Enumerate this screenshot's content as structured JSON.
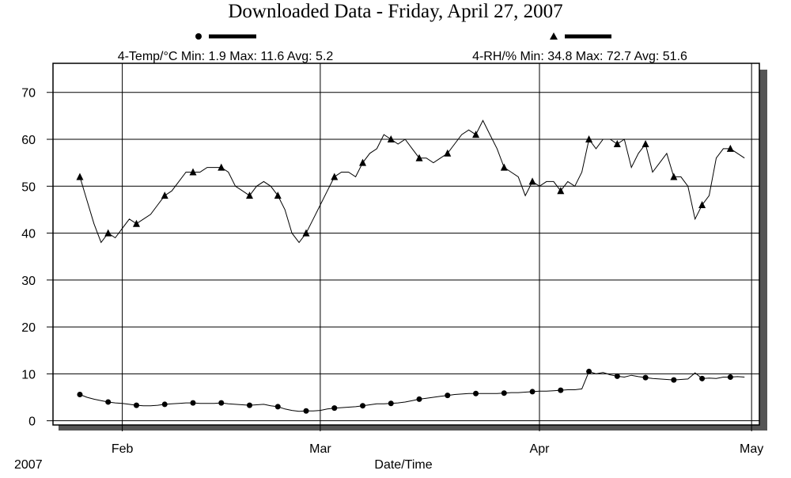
{
  "chart_data": {
    "type": "line",
    "title": "Downloaded Data - Friday, April 27, 2007",
    "xlabel": "Date/Time",
    "year_label": "2007",
    "x": [
      26,
      27,
      28,
      29,
      30,
      31,
      32,
      33,
      34,
      35,
      36,
      37,
      38,
      39,
      40,
      41,
      42,
      43,
      44,
      45,
      46,
      47,
      48,
      49,
      50,
      51,
      52,
      53,
      54,
      55,
      56,
      57,
      58,
      59,
      60,
      61,
      62,
      63,
      64,
      65,
      66,
      67,
      68,
      69,
      70,
      71,
      72,
      73,
      74,
      75,
      76,
      77,
      78,
      79,
      80,
      81,
      82,
      83,
      84,
      85,
      86,
      87,
      88,
      89,
      90,
      91,
      92,
      93,
      94,
      95,
      96,
      97,
      98,
      99,
      100,
      101,
      102,
      103,
      104,
      105,
      106,
      107,
      108,
      109,
      110,
      111,
      112,
      113,
      114,
      115,
      116,
      117,
      118,
      119,
      120
    ],
    "series": [
      {
        "name": "4-Temp/°C Min: 1.9 Max: 11.6 Avg: 5.2",
        "color": "#000000",
        "marker": "circle",
        "values": [
          5.6,
          5.0,
          4.6,
          4.3,
          4.0,
          3.8,
          3.7,
          3.5,
          3.3,
          3.2,
          3.2,
          3.3,
          3.5,
          3.6,
          3.7,
          3.8,
          3.8,
          3.7,
          3.7,
          3.7,
          3.8,
          3.6,
          3.5,
          3.4,
          3.3,
          3.4,
          3.5,
          3.2,
          3.0,
          2.5,
          2.2,
          2.0,
          2.1,
          2.1,
          2.2,
          2.5,
          2.7,
          2.8,
          2.9,
          3.0,
          3.2,
          3.4,
          3.6,
          3.6,
          3.7,
          3.8,
          4.0,
          4.3,
          4.6,
          4.8,
          5.0,
          5.2,
          5.4,
          5.6,
          5.7,
          5.8,
          5.8,
          5.8,
          5.8,
          5.8,
          5.9,
          6.0,
          6.0,
          6.1,
          6.2,
          6.3,
          6.3,
          6.4,
          6.5,
          6.6,
          6.6,
          6.8,
          10.5,
          10.0,
          10.3,
          9.8,
          9.5,
          9.3,
          9.7,
          9.4,
          9.2,
          9.0,
          8.9,
          8.8,
          8.7,
          8.8,
          8.9,
          10.2,
          9.0,
          9.1,
          9.0,
          9.3,
          9.3,
          9.4,
          9.3
        ]
      },
      {
        "name": "4-RH/% Min: 34.8 Max: 72.7 Avg: 51.6",
        "color": "#000000",
        "marker": "triangle",
        "values": [
          52,
          47,
          42,
          38,
          40,
          39,
          41,
          43,
          42,
          43,
          44,
          46,
          48,
          49,
          51,
          53,
          53,
          53,
          54,
          54,
          54,
          53,
          50,
          49,
          48,
          50,
          51,
          50,
          48,
          45,
          40,
          38,
          40,
          43,
          46,
          49,
          52,
          53,
          53,
          52,
          55,
          57,
          58,
          61,
          60,
          59,
          60,
          58,
          56,
          56,
          55,
          56,
          57,
          59,
          61,
          62,
          61,
          64,
          61,
          58,
          54,
          53,
          52,
          48,
          51,
          50,
          51,
          51,
          49,
          51,
          50,
          53,
          60,
          58,
          60,
          60,
          59,
          60,
          54,
          57,
          59,
          53,
          55,
          57,
          52,
          52,
          50,
          43,
          46,
          48,
          56,
          58,
          58,
          57,
          56
        ]
      }
    ],
    "xlim": [
      22.2,
      122.1
    ],
    "xticks": [
      {
        "value": 32,
        "label": "Feb"
      },
      {
        "value": 60,
        "label": "Mar"
      },
      {
        "value": 91,
        "label": "Apr"
      },
      {
        "value": 121,
        "label": "May"
      }
    ],
    "ylim": [
      -0.9,
      76.2
    ],
    "yticks": [
      0,
      10,
      20,
      30,
      40,
      50,
      60,
      70
    ],
    "grid": true
  }
}
